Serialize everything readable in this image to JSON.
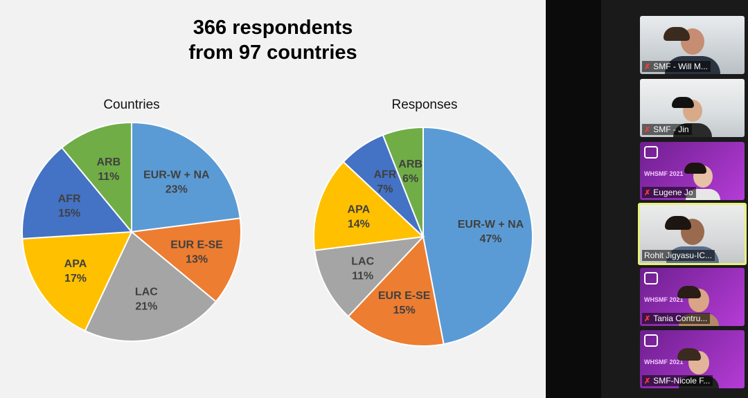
{
  "slide": {
    "title_line1": "366 respondents",
    "title_line2": "from 97 countries"
  },
  "chart_data": [
    {
      "type": "pie",
      "title": "Countries",
      "categories": [
        "EUR-W + NA",
        "EUR E-SE",
        "LAC",
        "APA",
        "AFR",
        "ARB"
      ],
      "values": [
        23,
        13,
        21,
        17,
        15,
        11
      ],
      "labels": [
        "23%",
        "13%",
        "21%",
        "17%",
        "15%",
        "11%"
      ],
      "colors": [
        "#5b9bd5",
        "#ed7d31",
        "#a5a5a5",
        "#ffc000",
        "#4472c4",
        "#70ad47"
      ]
    },
    {
      "type": "pie",
      "title": "Responses",
      "categories": [
        "EUR-W + NA",
        "EUR E-SE",
        "LAC",
        "APA",
        "AFR",
        "ARB"
      ],
      "values": [
        47,
        15,
        11,
        14,
        7,
        6
      ],
      "labels": [
        "47%",
        "15%",
        "11%",
        "14%",
        "7%",
        "6%"
      ],
      "colors": [
        "#5b9bd5",
        "#ed7d31",
        "#a5a5a5",
        "#ffc000",
        "#4472c4",
        "#70ad47"
      ]
    }
  ],
  "participants": [
    {
      "name": "SMF - Will M...",
      "muted": true
    },
    {
      "name": "SMF - Jin",
      "muted": true
    },
    {
      "name": "Eugene Jo",
      "muted": true
    },
    {
      "name": "Rohit Jigyasu-IC...",
      "muted": false,
      "active": true
    },
    {
      "name": "Tania Contru...",
      "muted": true
    },
    {
      "name": "SMF-Nicole F...",
      "muted": true
    }
  ],
  "branding": {
    "tile_logo_text": "WHSMF 2021"
  },
  "icons": {
    "mute": "muted-mic-icon",
    "handle": "panel-resize-handle"
  }
}
